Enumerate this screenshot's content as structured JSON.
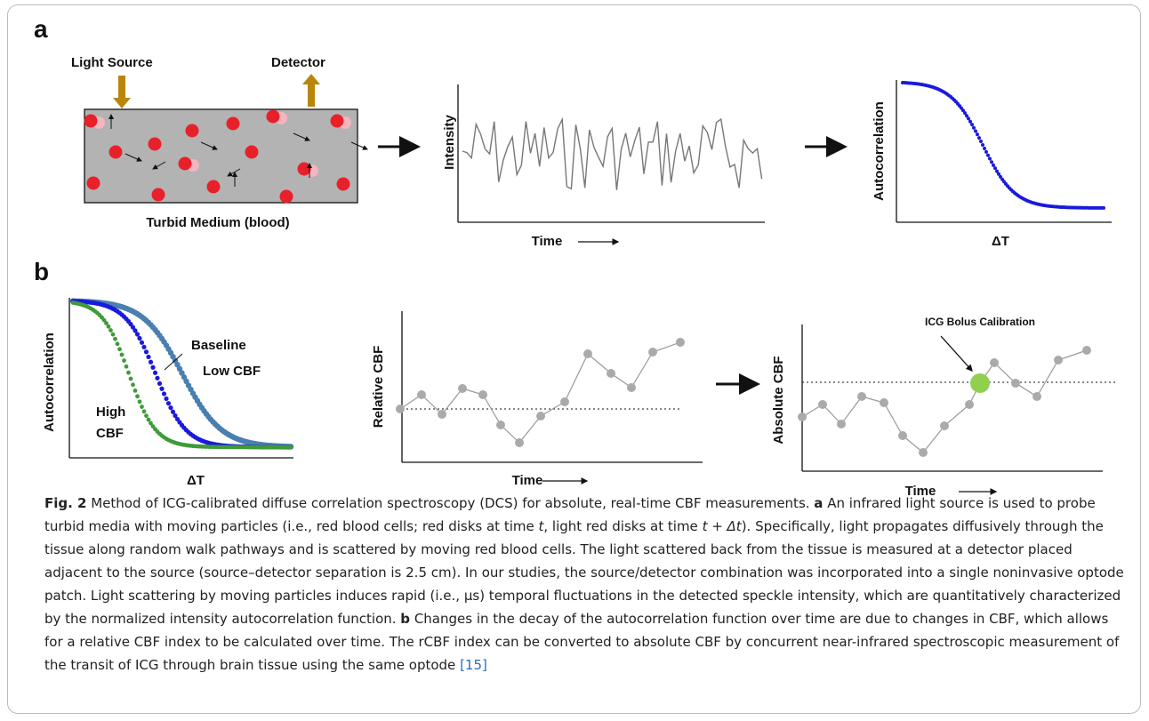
{
  "figure": {
    "panel_a": {
      "label": "a",
      "light_source": "Light Source",
      "detector": "Detector",
      "medium": "Turbid Medium (blood)",
      "intensity_y": "Intensity",
      "intensity_x": "Time",
      "autocorr_y": "Autocorrelation",
      "autocorr_x": "ΔT"
    },
    "panel_b": {
      "label": "b",
      "autocorr_y": "Autocorrelation",
      "autocorr_x": "ΔT",
      "baseline": "Baseline",
      "low_cbf": "Low CBF",
      "high_cbf": [
        "High",
        "CBF"
      ],
      "relative_y": "Relative CBF",
      "relative_x": "Time",
      "absolute_y": "Absolute CBF",
      "absolute_x": "Time",
      "icg": "ICG Bolus Calibration"
    }
  },
  "caption": {
    "label": "Fig. 2",
    "segments": [
      " Method of ICG-calibrated diffuse correlation spectroscopy (DCS) for absolute, real-time CBF measurements. ",
      "a",
      " An infrared light source is used to probe turbid media with moving particles (i.e., red blood cells; red disks at time ",
      "t",
      ", light red disks at time ",
      "t + Δt",
      "). Specifically, light propagates diffusively through the tissue along random walk pathways and is scattered by moving red blood cells. The light scattered back from the tissue is measured at a detector placed adjacent to the source (source–detector separation is 2.5 cm). In our studies, the source/detector combination was incorporated into a single noninvasive optode patch. Light scattering by moving particles induces rapid (i.e., μs) temporal fluctuations in the detected speckle intensity, which are quantitatively characterized by the normalized intensity autocorrelation function. ",
      "b",
      " Changes in the decay of the autocorrelation function over time are due to changes in CBF, which allows for a relative CBF index to be calculated over time. The rCBF index can be converted to absolute CBF by concurrent near-infrared spectroscopic measurement of the transit of ICG through brain tissue using the same optode ",
      "[15]"
    ]
  }
}
